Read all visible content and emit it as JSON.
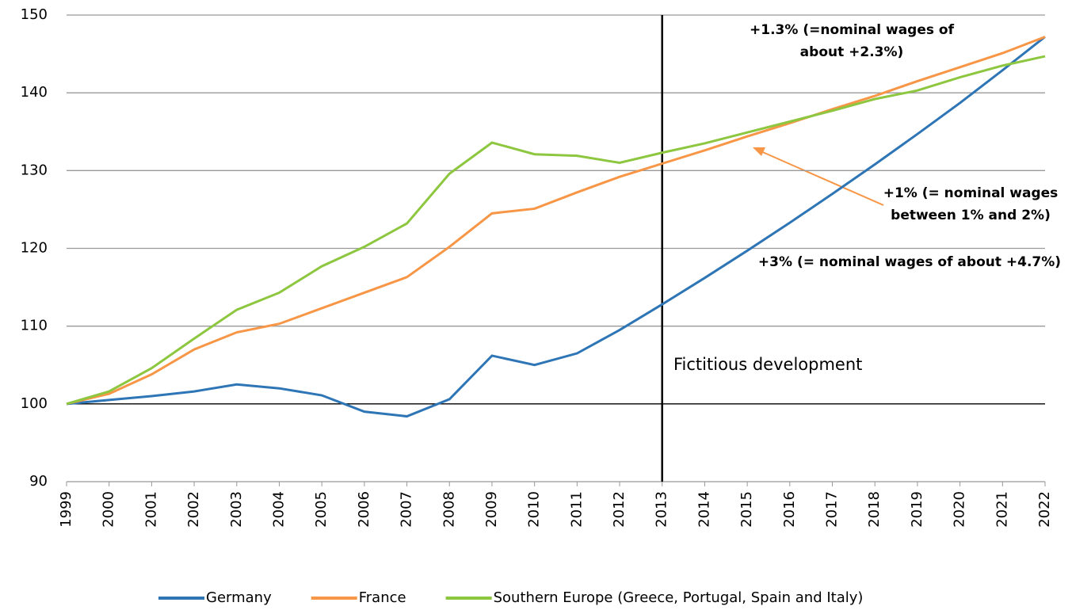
{
  "chart_data": {
    "type": "line",
    "categories": [
      "1999",
      "2000",
      "2001",
      "2002",
      "2003",
      "2004",
      "2005",
      "2006",
      "2007",
      "2008",
      "2009",
      "2010",
      "2011",
      "2012",
      "2013",
      "2014",
      "2015",
      "2016",
      "2017",
      "2018",
      "2019",
      "2020",
      "2021",
      "2022"
    ],
    "series": [
      {
        "name": "Germany",
        "color": "#2e75b6",
        "values": [
          100,
          100.5,
          101,
          101.6,
          102.5,
          102,
          101.1,
          99,
          98.4,
          100.6,
          106.2,
          105,
          106.5,
          109.5,
          112.8,
          116.2,
          119.7,
          123.3,
          127,
          130.8,
          134.7,
          138.7,
          142.9,
          147.2
        ]
      },
      {
        "name": "France",
        "color": "#f79646",
        "values": [
          100,
          101.3,
          103.8,
          107,
          109.2,
          110.3,
          112.3,
          114.3,
          116.3,
          120.2,
          124.5,
          125.1,
          127.2,
          129.2,
          130.9,
          132.6,
          134.4,
          136.1,
          137.9,
          139.6,
          141.5,
          143.3,
          145.1,
          147.2
        ]
      },
      {
        "name": "Southern Europe (Greece, Portugal, Spain and Italy)",
        "color": "#8dc63f",
        "values": [
          100,
          101.6,
          104.6,
          108.4,
          112.1,
          114.3,
          117.7,
          120.2,
          123.2,
          129.6,
          133.6,
          132.1,
          131.9,
          131,
          132.3,
          133.5,
          134.9,
          136.3,
          137.7,
          139.2,
          140.3,
          142,
          143.5,
          144.7
        ]
      }
    ],
    "ylim": [
      90,
      150
    ],
    "yticks": [
      90,
      100,
      110,
      120,
      130,
      140,
      150
    ],
    "grid": true,
    "vertical_line_at": "2013",
    "annotations": [
      {
        "lines": [
          "+1.3% (=nominal wages of",
          "about +2.3%)"
        ],
        "color": "#6aa121"
      },
      {
        "lines": [
          "+1% (= nominal wages",
          "between 1% and 2%)"
        ],
        "color": "#f79646"
      },
      {
        "lines": [
          "+3% (= nominal wages of about +4.7%)"
        ],
        "color": "#2e75b6"
      },
      {
        "lines": [
          "Fictitious development"
        ],
        "color": "#000000"
      }
    ],
    "legend": "bottom"
  }
}
